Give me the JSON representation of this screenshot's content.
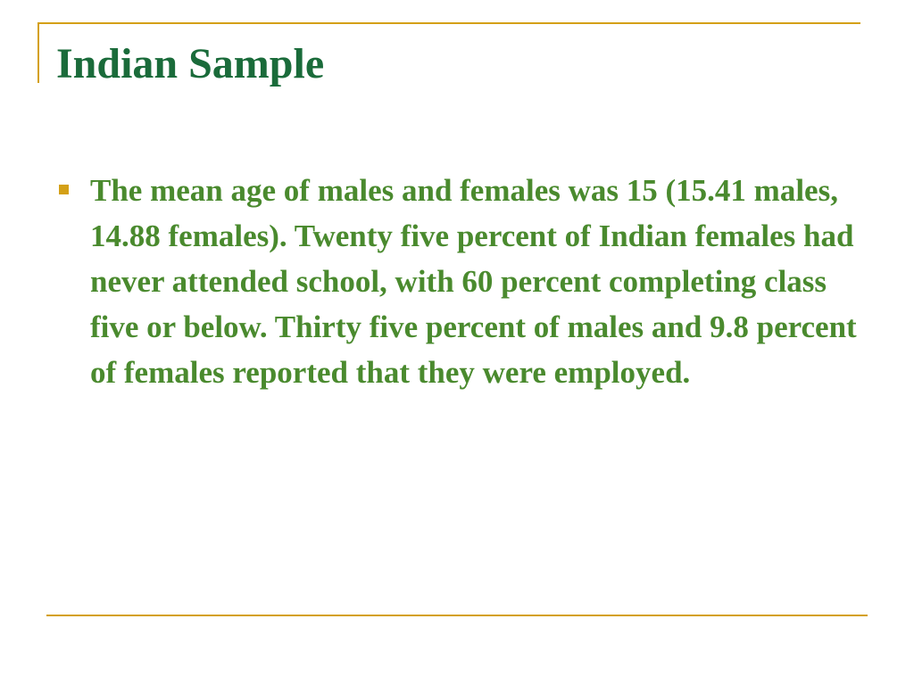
{
  "slide": {
    "title": "Indian Sample",
    "bullets": [
      {
        "text": "The mean age of males and females was 15 (15.41 males, 14.88 females). Twenty five percent of Indian females had never attended school, with 60 percent completing class five or below. Thirty five percent of males and 9.8 percent of females reported that they were employed."
      }
    ]
  },
  "colors": {
    "title": "#1a6b3a",
    "body": "#4a8a2e",
    "accent": "#d4a017"
  }
}
